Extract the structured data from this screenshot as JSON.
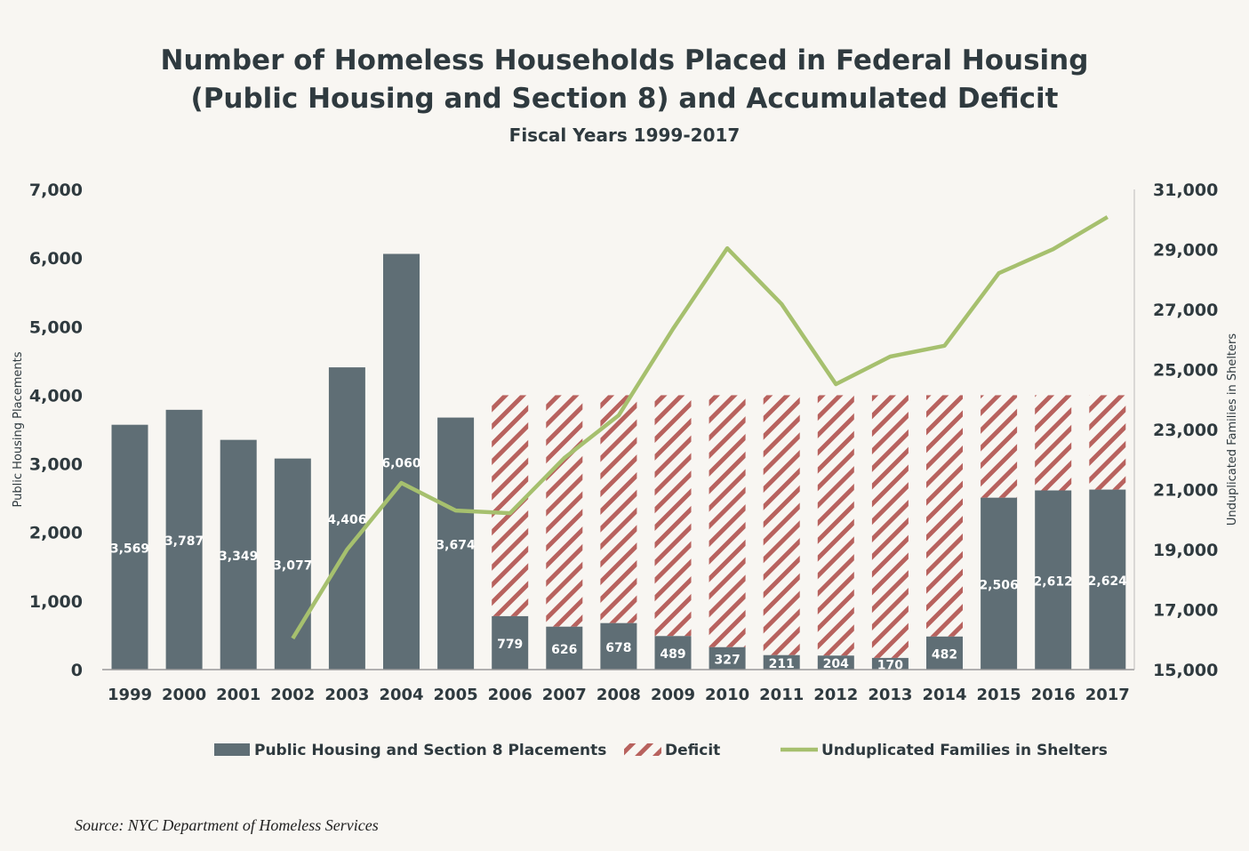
{
  "chart_data": {
    "type": "bar",
    "title": "Number of Homeless Households Placed in Federal Housing",
    "title_line2": "(Public Housing and Section 8) and Accumulated Deficit",
    "subtitle": "Fiscal Years 1999-2017",
    "ylabel": "Public Housing Placements",
    "y2label": "Unduplicated Families in Shelters",
    "ylim": [
      0,
      7000
    ],
    "y2lim": [
      15000,
      31000
    ],
    "yticks": [
      "0",
      "1,000",
      "2,000",
      "3,000",
      "4,000",
      "5,000",
      "6,000",
      "7,000"
    ],
    "y2ticks": [
      "15,000",
      "17,000",
      "19,000",
      "21,000",
      "23,000",
      "25,000",
      "27,000",
      "29,000",
      "31,000"
    ],
    "grid": false,
    "legend_position": "bottom",
    "categories": [
      "1999",
      "2000",
      "2001",
      "2002",
      "2003",
      "2004",
      "2005",
      "2006",
      "2007",
      "2008",
      "2009",
      "2010",
      "2011",
      "2012",
      "2013",
      "2014",
      "2015",
      "2016",
      "2017"
    ],
    "series": [
      {
        "name": "Public Housing and Section 8 Placements",
        "type": "bar",
        "color": "#5f6e75",
        "values": [
          3569,
          3787,
          3349,
          3077,
          4406,
          6060,
          3674,
          779,
          626,
          678,
          489,
          327,
          211,
          204,
          170,
          482,
          2506,
          2612,
          2624
        ],
        "labels": [
          "3,569",
          "3,787",
          "3,349",
          "3,077",
          "4,406",
          "6,060",
          "3,674",
          "779",
          "626",
          "678",
          "489",
          "327",
          "211",
          "204",
          "170",
          "482",
          "2,506",
          "2,612",
          "2,624"
        ]
      },
      {
        "name": "Deficit",
        "type": "stacked-hatched-bar",
        "color": "#b8625e",
        "values": [
          null,
          null,
          null,
          null,
          null,
          null,
          null,
          3221,
          3374,
          3322,
          3511,
          3673,
          3789,
          3796,
          3830,
          3518,
          1494,
          1388,
          1376
        ]
      },
      {
        "name": "Unduplicated Families in Shelters",
        "type": "line",
        "axis": "right",
        "color": "#a6c06e",
        "values": [
          null,
          null,
          null,
          16040,
          19000,
          21220,
          20300,
          20210,
          22050,
          23470,
          26350,
          29040,
          27180,
          24510,
          25430,
          25790,
          28210,
          29010,
          30080
        ]
      }
    ]
  },
  "source": "Source:  NYC Department of Homeless Services"
}
